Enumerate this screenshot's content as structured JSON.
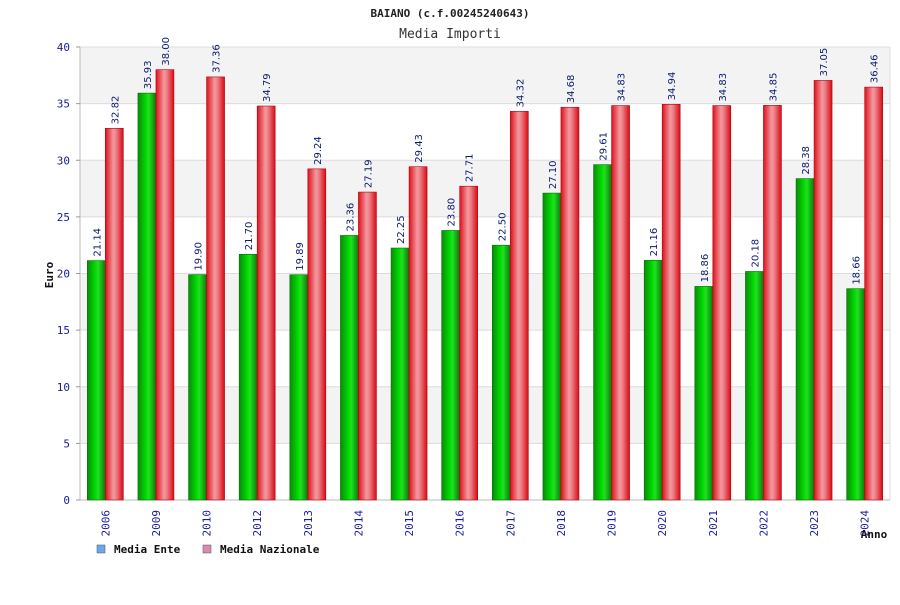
{
  "chart_data": {
    "type": "bar",
    "title": "BAIANO (c.f.00245240643)",
    "subtitle": "Media Importi",
    "xlabel": "Anno",
    "ylabel": "Euro",
    "ylim": [
      0,
      40
    ],
    "yticks": [
      0,
      5,
      10,
      15,
      20,
      25,
      30,
      35,
      40
    ],
    "grid": true,
    "legend_position": "bottom-left",
    "categories": [
      "2006",
      "2009",
      "2010",
      "2012",
      "2013",
      "2014",
      "2015",
      "2016",
      "2017",
      "2018",
      "2019",
      "2020",
      "2021",
      "2022",
      "2023",
      "2024"
    ],
    "series": [
      {
        "name": "Media Ente",
        "bar_color": "#10a810",
        "legend_color": "#6aa8e8",
        "values": [
          21.14,
          35.93,
          19.9,
          21.7,
          19.89,
          23.36,
          22.25,
          23.8,
          22.5,
          27.1,
          29.61,
          21.16,
          18.86,
          20.18,
          28.38,
          18.66
        ],
        "labels": [
          "21.14",
          "35.93",
          "19.90",
          "21.70",
          "19.89",
          "23.36",
          "22.25",
          "23.80",
          "22.50",
          "27.10",
          "29.61",
          "21.16",
          "18.86",
          "20.18",
          "28.38",
          "18.66"
        ]
      },
      {
        "name": "Media Nazionale",
        "bar_color": "#e01820",
        "legend_color": "#d88ab0",
        "values": [
          32.82,
          38.0,
          37.36,
          34.79,
          29.24,
          27.19,
          29.43,
          27.71,
          34.32,
          34.68,
          34.83,
          34.94,
          34.83,
          34.85,
          37.05,
          36.46
        ],
        "labels": [
          "32.82",
          "38.00",
          "37.36",
          "34.79",
          "29.24",
          "27.19",
          "29.43",
          "27.71",
          "34.32",
          "34.68",
          "34.83",
          "34.94",
          "34.83",
          "34.85",
          "37.05",
          "36.46"
        ]
      }
    ]
  }
}
